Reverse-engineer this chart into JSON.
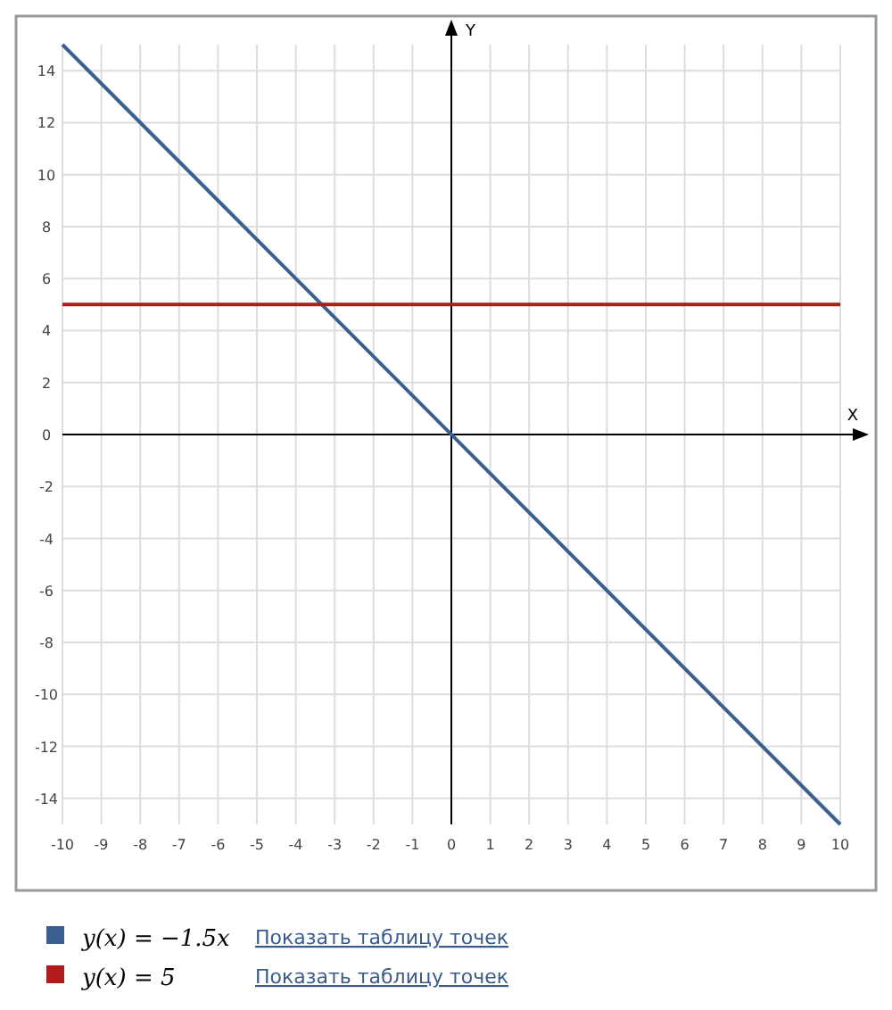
{
  "chart_data": {
    "type": "line",
    "xlabel": "X",
    "ylabel": "Y",
    "x": [
      -10,
      10
    ],
    "series": [
      {
        "name": "y(x) = −1.5x",
        "color": "#3b5f8f",
        "values": [
          15,
          -15
        ]
      },
      {
        "name": "y(x) = 5",
        "color": "#b01c1c",
        "values": [
          5,
          5
        ]
      }
    ],
    "xlim": [
      -10,
      10
    ],
    "xticks": [
      -10,
      -9,
      -8,
      -7,
      -6,
      -5,
      -4,
      -3,
      -2,
      -1,
      0,
      1,
      2,
      3,
      4,
      5,
      6,
      7,
      8,
      9,
      10
    ],
    "ylim": [
      -15,
      15
    ],
    "yticks": [
      -14,
      -12,
      -10,
      -8,
      -6,
      -4,
      -2,
      0,
      2,
      4,
      6,
      8,
      10,
      12,
      14
    ],
    "grid": true,
    "legend": "bottom",
    "marker": "none",
    "line_style": "solid",
    "annotations": [
      "Показать таблицу точек",
      "Показать таблицу точек"
    ]
  }
}
